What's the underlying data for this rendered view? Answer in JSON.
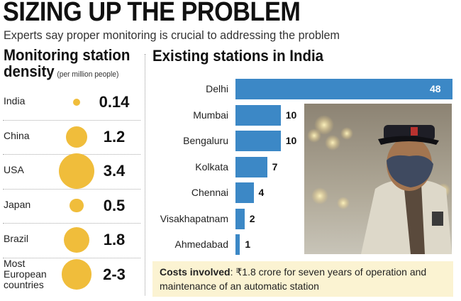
{
  "title": "SIZING UP THE PROBLEM",
  "subtitle": "Experts say proper monitoring is crucial to addressing the problem",
  "left_panel": {
    "heading_line1": "Monitoring station",
    "heading_line2": "density",
    "unit": "(per million people)"
  },
  "right_panel": {
    "heading": "Existing stations in India"
  },
  "costs": {
    "label": "Costs involved",
    "text": ": ₹1.8 crore for seven years of operation and maintenance of an automatic station"
  },
  "colors": {
    "bubble": "#f0bd3b",
    "bar": "#3c88c6",
    "costs_bg": "#fbf3d2"
  },
  "chart_data": [
    {
      "type": "bubble",
      "title": "Monitoring station density",
      "unit": "(per million people)",
      "categories": [
        "India",
        "China",
        "USA",
        "Japan",
        "Brazil",
        "Most European countries"
      ],
      "labels": [
        "0.14",
        "1.2",
        "3.4",
        "0.5",
        "1.8",
        "2-3"
      ],
      "values": [
        0.14,
        1.2,
        3.4,
        0.5,
        1.8,
        2.5
      ]
    },
    {
      "type": "bar",
      "orientation": "horizontal",
      "title": "Existing stations in India",
      "categories": [
        "Delhi",
        "Mumbai",
        "Bengaluru",
        "Kolkata",
        "Chennai",
        "Visakhapatnam",
        "Ahmedabad"
      ],
      "values": [
        48,
        10,
        10,
        7,
        4,
        2,
        1
      ],
      "xlim": [
        0,
        48
      ]
    }
  ]
}
